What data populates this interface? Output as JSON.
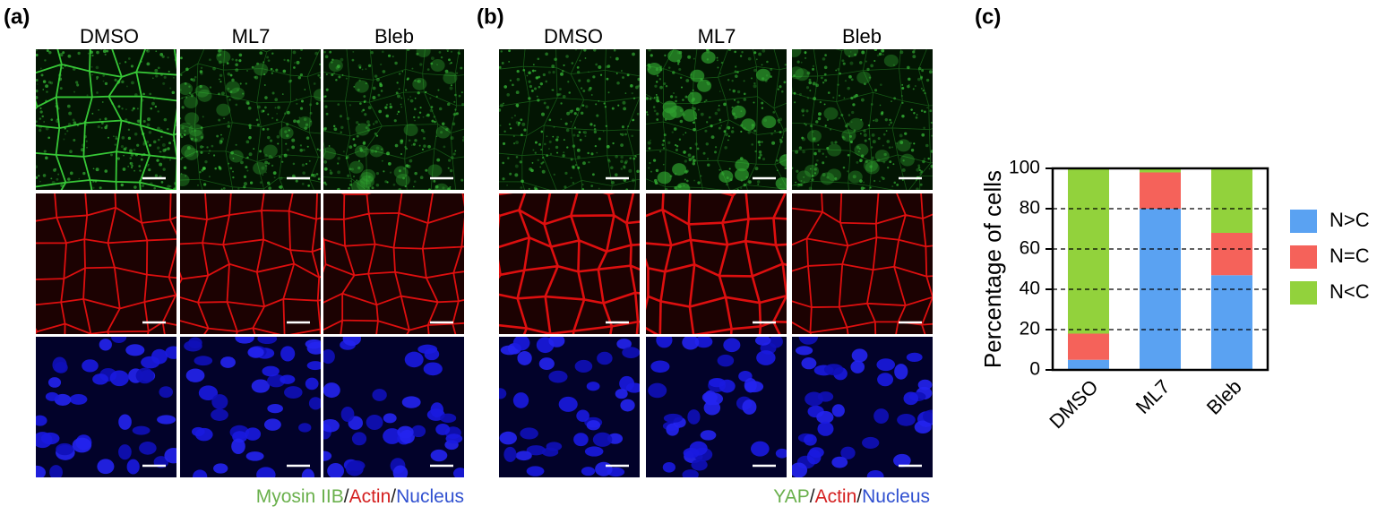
{
  "panels": [
    {
      "label": "(a)",
      "columns": [
        "DMSO",
        "ML7",
        "Bleb"
      ],
      "caption": [
        "Myosin IIB",
        "/",
        "Actin",
        "/",
        "Nucleus"
      ]
    },
    {
      "label": "(b)",
      "columns": [
        "DMSO",
        "ML7",
        "Bleb"
      ],
      "caption": [
        "YAP",
        "/",
        "Actin",
        "/",
        "Nucleus"
      ]
    }
  ],
  "chart_data": {
    "type": "bar",
    "stacked": true,
    "title": "(c)",
    "ylabel": "Percentage of cells",
    "categories": [
      "DMSO",
      "ML7",
      "Bleb"
    ],
    "series": [
      {
        "name": "N>C",
        "color": "#5aa2f2",
        "values": [
          5,
          80,
          47
        ]
      },
      {
        "name": "N=C",
        "color": "#f5625a",
        "values": [
          13,
          18,
          21
        ]
      },
      {
        "name": "N<C",
        "color": "#92d23c",
        "values": [
          82,
          2,
          32
        ]
      }
    ],
    "ylim": [
      0,
      100
    ],
    "yticks": [
      0,
      20,
      40,
      60,
      80,
      100
    ],
    "grid": true,
    "legend": "right"
  }
}
